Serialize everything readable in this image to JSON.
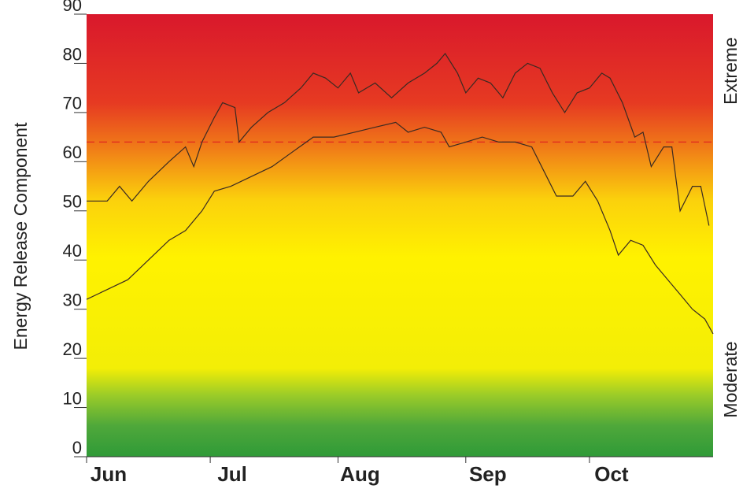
{
  "chart_data": {
    "type": "line",
    "ylabel": "Energy Release Component",
    "right_labels": [
      "Extreme",
      "Moderate"
    ],
    "xlim": [
      0,
      152
    ],
    "xticks": [
      {
        "value": 0,
        "label": "Jun"
      },
      {
        "value": 30,
        "label": "Jul"
      },
      {
        "value": 61,
        "label": "Aug"
      },
      {
        "value": 92,
        "label": "Sep"
      },
      {
        "value": 122,
        "label": "Oct"
      }
    ],
    "ylim": [
      0,
      90
    ],
    "yticks": [
      0,
      10,
      20,
      30,
      40,
      50,
      60,
      70,
      80,
      90
    ],
    "reference_line": {
      "value": 64,
      "color": "#e0281e"
    },
    "series": [
      {
        "color": "#3a2a22",
        "x": [
          0,
          5,
          8,
          11,
          15,
          20,
          24,
          26,
          28,
          31,
          33,
          36,
          37,
          40,
          44,
          48,
          52,
          55,
          58,
          61,
          64,
          66,
          70,
          74,
          78,
          82,
          85,
          87,
          90,
          92,
          95,
          98,
          101,
          104,
          107,
          110,
          113,
          116,
          119,
          122,
          125,
          127,
          130,
          133,
          135,
          137,
          140,
          142,
          144,
          147,
          149,
          151
        ],
        "values": [
          52,
          52,
          55,
          52,
          56,
          60,
          63,
          59,
          64,
          69,
          72,
          71,
          64,
          67,
          70,
          72,
          75,
          78,
          77,
          75,
          78,
          74,
          76,
          73,
          76,
          78,
          80,
          82,
          78,
          74,
          77,
          76,
          73,
          78,
          80,
          79,
          74,
          70,
          74,
          75,
          78,
          77,
          72,
          65,
          66,
          59,
          63,
          63,
          50,
          55,
          55,
          47
        ]
      },
      {
        "color": "#3a2a22",
        "x": [
          0,
          5,
          10,
          15,
          20,
          24,
          28,
          31,
          35,
          40,
          45,
          50,
          55,
          60,
          65,
          70,
          75,
          78,
          82,
          86,
          88,
          92,
          96,
          100,
          104,
          108,
          111,
          114,
          118,
          121,
          124,
          127,
          129,
          132,
          135,
          138,
          141,
          144,
          147,
          150,
          152
        ],
        "values": [
          32,
          34,
          36,
          40,
          44,
          46,
          50,
          54,
          55,
          57,
          59,
          62,
          65,
          65,
          66,
          67,
          68,
          66,
          67,
          66,
          63,
          64,
          65,
          64,
          64,
          63,
          58,
          53,
          53,
          56,
          52,
          46,
          41,
          44,
          43,
          39,
          36,
          33,
          30,
          28,
          25
        ]
      }
    ]
  }
}
